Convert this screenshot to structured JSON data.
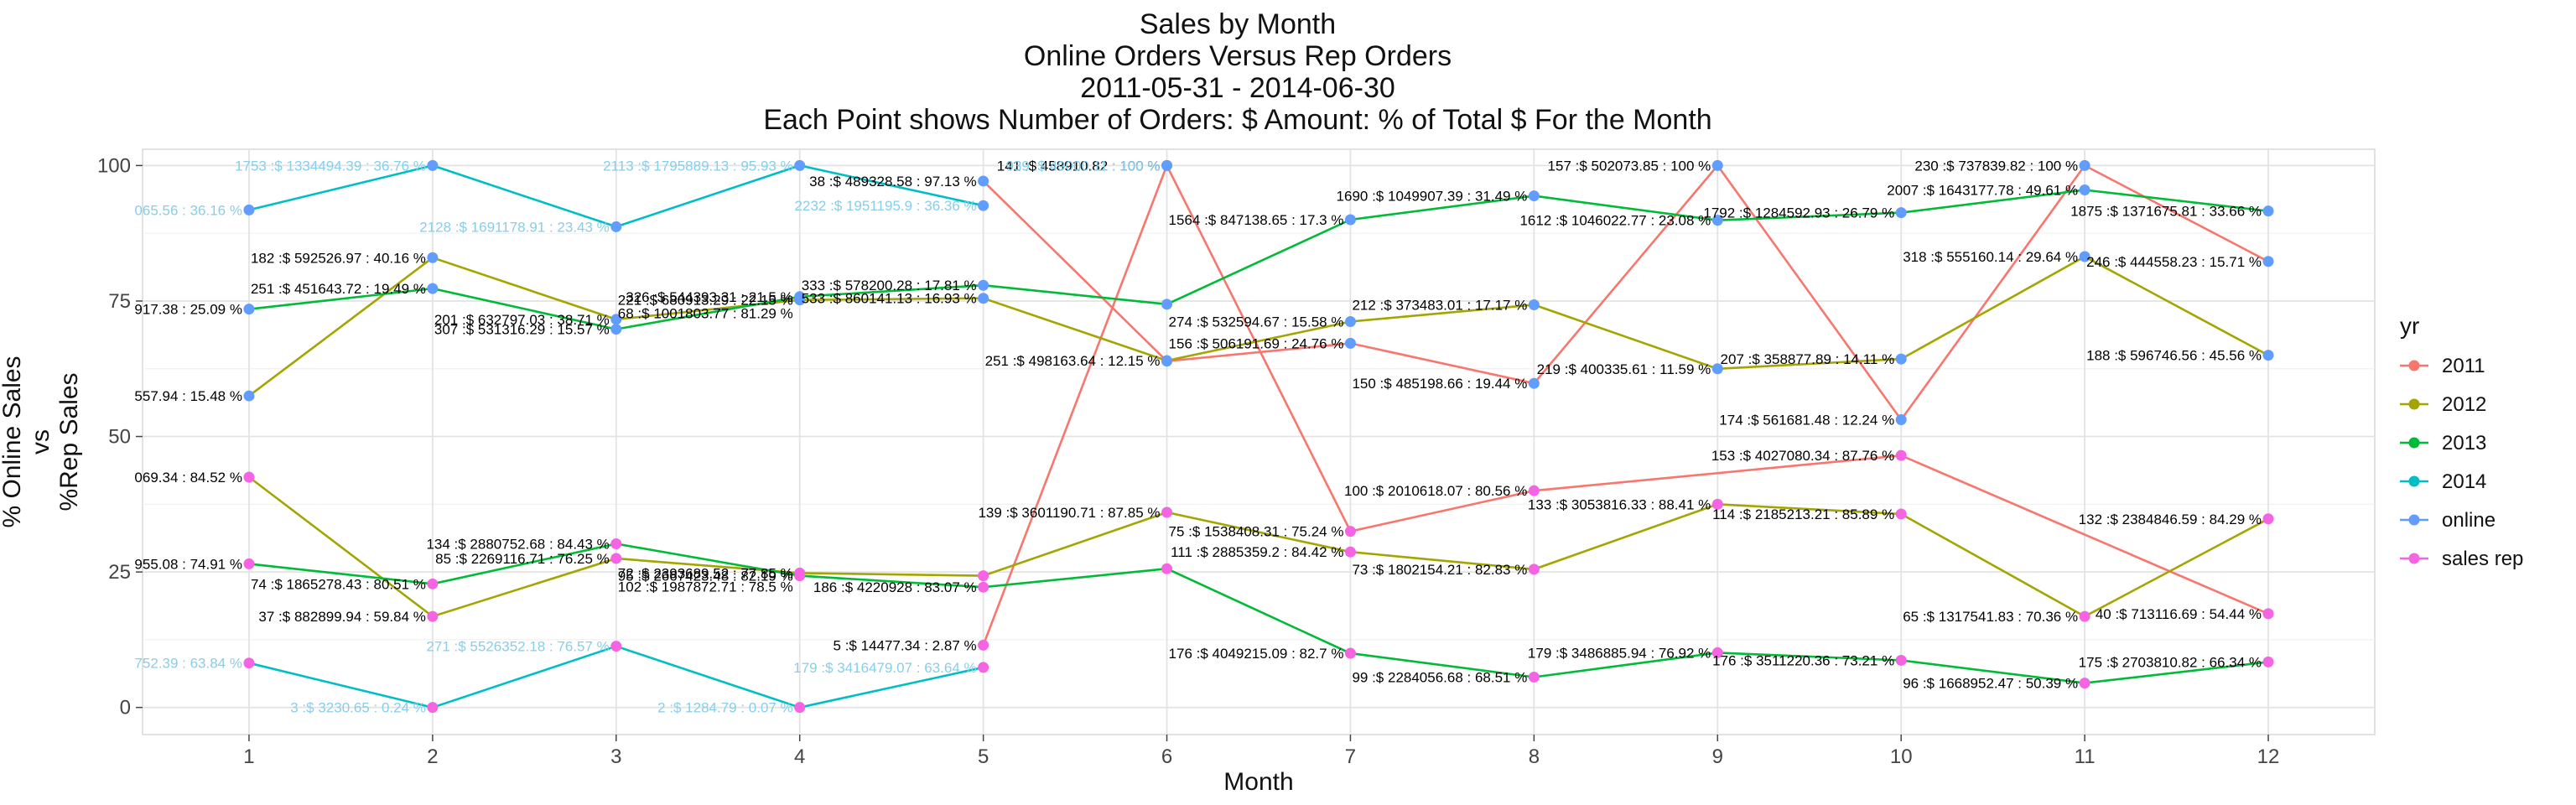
{
  "chart_data": {
    "type": "line",
    "title_lines": [
      "Sales by Month",
      "Online Orders Versus Rep Orders",
      "2011-05-31  -  2014-06-30",
      "Each Point shows Number of Orders: $ Amount: % of Total $ For the Month"
    ],
    "xlabel": "Month",
    "ylabel_lines": [
      "% Online Sales",
      "vs",
      "%Rep Sales"
    ],
    "x_ticks": [
      "1",
      "2",
      "3",
      "4",
      "5",
      "6",
      "7",
      "8",
      "9",
      "10",
      "11",
      "12"
    ],
    "y_ticks": [
      "0",
      "25",
      "50",
      "75",
      "100"
    ],
    "xlim": [
      0.42,
      12.58
    ],
    "ylim": [
      -5,
      103
    ],
    "grid": true,
    "legend_position": "right",
    "legend": {
      "title": "yr",
      "entries": [
        {
          "label": "2011",
          "color": "#F8766D"
        },
        {
          "label": "2012",
          "color": "#A3A500"
        },
        {
          "label": "2013",
          "color": "#00BA38"
        },
        {
          "label": "2014",
          "color": "#00BFC4"
        },
        {
          "label": "online",
          "color": "#619CFF"
        },
        {
          "label": "sales rep",
          "color": "#F564E3"
        }
      ]
    },
    "series": [
      {
        "name": "2011",
        "color": "#F8766D",
        "points": [
          {
            "x": 5,
            "y": 97.13,
            "type": "online",
            "label": "38 :$ 489328.58 : 97.13 %"
          },
          {
            "x": 6,
            "y": 63.9,
            "type": "online",
            "label": ""
          },
          {
            "x": 7,
            "y": 67.2,
            "type": "online",
            "label": "156 :$ 506191.69 : 24.76 %"
          },
          {
            "x": 8,
            "y": 59.8,
            "type": "online",
            "label": "150 :$ 485198.66 : 19.44 %"
          },
          {
            "x": 9,
            "y": 100,
            "type": "online",
            "label": "157 :$ 502073.85 : 100 %"
          },
          {
            "x": 10,
            "y": 53.1,
            "type": "online",
            "label": "174 :$ 561681.48 : 12.24 %"
          },
          {
            "x": 11,
            "y": 100,
            "type": "online",
            "label": "230 :$ 737839.82 : 100 %"
          },
          {
            "x": 12,
            "y": 82.3,
            "type": "online",
            "label": "246 :$ 444558.23 : 15.71 %"
          },
          {
            "x": 5,
            "y": 11.5,
            "type": "rep",
            "label": "5 :$ 14477.34 : 2.87 %"
          },
          {
            "x": 6,
            "y": 100,
            "type": "rep",
            "label": "141 :$ 458910.82 : 100 %"
          },
          {
            "x": 7,
            "y": 32.5,
            "type": "rep",
            "label": "75 :$ 1538408.31 : 75.24 %"
          },
          {
            "x": 8,
            "y": 40,
            "type": "rep",
            "label": "100 :$ 2010618.07 : 80.56 %"
          },
          {
            "x": 10,
            "y": 46.5,
            "type": "rep",
            "label": "153 :$ 4027080.34 : 87.76 %"
          },
          {
            "x": 12,
            "y": 17.3,
            "type": "rep",
            "label": "40 :$ 713116.69 : 54.44 %"
          }
        ],
        "segments": [
          [
            [
              5,
              97.13
            ],
            [
              6,
              63.9
            ],
            [
              7,
              67.2
            ],
            [
              8,
              59.8
            ],
            [
              9,
              100
            ],
            [
              10,
              53.1
            ],
            [
              11,
              100
            ],
            [
              12,
              82.3
            ]
          ],
          [
            [
              5,
              11.5
            ],
            [
              6,
              100
            ],
            [
              7,
              32.5
            ],
            [
              8,
              40
            ],
            [
              10,
              46.5
            ],
            [
              12,
              17.3
            ]
          ]
        ]
      },
      {
        "name": "2012",
        "color": "#A3A500",
        "points": [
          {
            "x": 1,
            "y": 57.5,
            "type": "online",
            "label": "557.94 : 15.48 %"
          },
          {
            "x": 2,
            "y": 83,
            "type": "online",
            "label": "182 :$ 592526.97 : 40.16 %"
          },
          {
            "x": 3,
            "y": 71.6,
            "type": "online",
            "label": "201 :$ 632797.03 : 38.71 %"
          },
          {
            "x": 4,
            "y": 75.2,
            "type": "online",
            "label": "221 :$ 680913.29 : 22.15 %"
          },
          {
            "x": 5,
            "y": 75.5,
            "type": "online",
            "label": "533 :$ 860141.13 : 16.93 %"
          },
          {
            "x": 6,
            "y": 64,
            "type": "online",
            "label": "251 :$ 498163.64 : 12.15 %"
          },
          {
            "x": 7,
            "y": 71.2,
            "type": "online",
            "label": "274 :$ 532594.67 : 15.58 %"
          },
          {
            "x": 8,
            "y": 74.3,
            "type": "online",
            "label": "212 :$ 373483.01 : 17.17 %"
          },
          {
            "x": 9,
            "y": 62.5,
            "type": "online",
            "label": "219 :$ 400335.61 : 11.59 %"
          },
          {
            "x": 10,
            "y": 64.3,
            "type": "online",
            "label": "207 :$ 358877.89 : 14.11 %"
          },
          {
            "x": 11,
            "y": 83.2,
            "type": "online",
            "label": "318 :$ 555160.14 : 29.64 %"
          },
          {
            "x": 12,
            "y": 65,
            "type": "online",
            "label": "188 :$ 596746.56 : 45.56 %"
          },
          {
            "x": 1,
            "y": 42.5,
            "type": "rep",
            "label": "069.34 : 84.52 %"
          },
          {
            "x": 2,
            "y": 16.8,
            "type": "rep",
            "label": "37 :$ 882899.94 : 59.84 %"
          },
          {
            "x": 3,
            "y": 27.5,
            "type": "rep",
            "label": "85 :$ 2269116.71 : 76.25 %"
          },
          {
            "x": 4,
            "y": 24.8,
            "type": "rep",
            "label": "72 :$ 2393689.52 : 77.85 %"
          },
          {
            "x": 5,
            "y": 24.3,
            "type": "rep",
            "label": ""
          },
          {
            "x": 6,
            "y": 36,
            "type": "rep",
            "label": "139 :$ 3601190.71 : 87.85 %"
          },
          {
            "x": 7,
            "y": 28.7,
            "type": "rep",
            "label": "111 :$ 2885359.2 : 84.42 %"
          },
          {
            "x": 8,
            "y": 25.5,
            "type": "rep",
            "label": "73 :$ 1802154.21 : 82.83 %"
          },
          {
            "x": 9,
            "y": 37.5,
            "type": "rep",
            "label": "133 :$ 3053816.33 : 88.41 %"
          },
          {
            "x": 10,
            "y": 35.7,
            "type": "rep",
            "label": "114 :$ 2185213.21 : 85.89 %"
          },
          {
            "x": 11,
            "y": 16.8,
            "type": "rep",
            "label": "65 :$ 1317541.83 : 70.36 %"
          },
          {
            "x": 12,
            "y": 34.8,
            "type": "rep",
            "label": "132 :$ 2384846.59 : 84.29 %"
          }
        ],
        "segments": [
          [
            [
              1,
              57.5
            ],
            [
              2,
              83
            ],
            [
              3,
              71.6
            ],
            [
              4,
              75.2
            ],
            [
              5,
              75.5
            ],
            [
              6,
              64
            ],
            [
              7,
              71.2
            ],
            [
              8,
              74.3
            ],
            [
              9,
              62.5
            ],
            [
              10,
              64.3
            ],
            [
              11,
              83.2
            ],
            [
              12,
              65
            ]
          ],
          [
            [
              1,
              42.5
            ],
            [
              2,
              16.8
            ],
            [
              3,
              27.5
            ],
            [
              4,
              24.8
            ],
            [
              5,
              24.3
            ],
            [
              6,
              36
            ],
            [
              7,
              28.7
            ],
            [
              8,
              25.5
            ],
            [
              9,
              37.5
            ],
            [
              10,
              35.7
            ],
            [
              11,
              16.8
            ],
            [
              12,
              34.8
            ]
          ]
        ]
      },
      {
        "name": "2013",
        "color": "#00BA38",
        "points": [
          {
            "x": 1,
            "y": 73.5,
            "type": "online",
            "label": "917.38 : 25.09 %"
          },
          {
            "x": 2,
            "y": 77.3,
            "type": "online",
            "label": "251 :$ 451643.72 : 19.49 %"
          },
          {
            "x": 3,
            "y": 69.8,
            "type": "online",
            "label": "307 :$ 531316.29 : 15.57 %"
          },
          {
            "x": 4,
            "y": 75.8,
            "type": "online",
            "label": "326 :$ 544393.31 : 21.5 %"
          },
          {
            "x": 5,
            "y": 77.9,
            "type": "online",
            "label": "333 :$ 578200.28 : 17.81 %"
          },
          {
            "x": 6,
            "y": 74.4,
            "type": "online",
            "label": ""
          },
          {
            "x": 7,
            "y": 90,
            "type": "online",
            "label": "1564 :$ 847138.65 : 17.3 %"
          },
          {
            "x": 8,
            "y": 94.4,
            "type": "online",
            "label": "1690 :$ 1049907.39 : 31.49 %"
          },
          {
            "x": 9,
            "y": 89.9,
            "type": "online",
            "label": "1612 :$ 1046022.77 : 23.08 %"
          },
          {
            "x": 10,
            "y": 91.3,
            "type": "online",
            "label": "1792 :$ 1284592.93 : 26.79 %"
          },
          {
            "x": 11,
            "y": 95.5,
            "type": "online",
            "label": "2007 :$ 1643177.78 : 49.61 %"
          },
          {
            "x": 12,
            "y": 91.6,
            "type": "online",
            "label": "1875 :$ 1371675.81 : 33.66 %"
          },
          {
            "x": 1,
            "y": 26.5,
            "type": "rep",
            "label": "955.08 : 74.91 %"
          },
          {
            "x": 2,
            "y": 22.8,
            "type": "rep",
            "label": "74 :$ 1865278.43 : 80.51 %"
          },
          {
            "x": 3,
            "y": 30.2,
            "type": "rep",
            "label": "134 :$ 2880752.68 : 84.43 %"
          },
          {
            "x": 4,
            "y": 24.3,
            "type": "rep",
            "label": "95 :$ 2667423.48 : 82.19 %"
          },
          {
            "x": 5,
            "y": 22.2,
            "type": "rep",
            "label": "186 :$ 4220928 : 83.07 %"
          },
          {
            "x": 6,
            "y": 25.6,
            "type": "rep",
            "label": ""
          },
          {
            "x": 7,
            "y": 10,
            "type": "rep",
            "label": "176 :$ 4049215.09 : 82.7 %"
          },
          {
            "x": 8,
            "y": 5.6,
            "type": "rep",
            "label": "99 :$ 2284056.68 : 68.51 %"
          },
          {
            "x": 9,
            "y": 10.1,
            "type": "rep",
            "label": "179 :$ 3486885.94 : 76.92 %"
          },
          {
            "x": 10,
            "y": 8.7,
            "type": "rep",
            "label": "176 :$ 3511220.36 : 73.21 %"
          },
          {
            "x": 11,
            "y": 4.5,
            "type": "rep",
            "label": "96 :$ 1668952.47 : 50.39 %"
          },
          {
            "x": 12,
            "y": 8.4,
            "type": "rep",
            "label": "175 :$ 2703810.82 : 66.34 %"
          }
        ],
        "segments": [
          [
            [
              1,
              73.5
            ],
            [
              2,
              77.3
            ],
            [
              3,
              69.8
            ],
            [
              4,
              75.8
            ],
            [
              5,
              77.9
            ],
            [
              6,
              74.4
            ],
            [
              7,
              90
            ],
            [
              8,
              94.4
            ],
            [
              9,
              89.9
            ],
            [
              10,
              91.3
            ],
            [
              11,
              95.5
            ],
            [
              12,
              91.6
            ]
          ],
          [
            [
              1,
              26.5
            ],
            [
              2,
              22.8
            ],
            [
              3,
              30.2
            ],
            [
              4,
              24.3
            ],
            [
              5,
              22.2
            ],
            [
              6,
              25.6
            ],
            [
              7,
              10
            ],
            [
              8,
              5.6
            ],
            [
              9,
              10.1
            ],
            [
              10,
              8.7
            ],
            [
              11,
              4.5
            ],
            [
              12,
              8.4
            ]
          ]
        ]
      },
      {
        "name": "2014",
        "color": "#00BFC4",
        "points": [
          {
            "x": 1,
            "y": 91.8,
            "type": "online",
            "label": "065.56 : 36.16 %"
          },
          {
            "x": 2,
            "y": 100,
            "type": "online",
            "label": "1753 :$ 1334494.39 : 36.76 %"
          },
          {
            "x": 3,
            "y": 88.7,
            "type": "online",
            "label": "2128 :$ 1691178.91 : 23.43 %"
          },
          {
            "x": 4,
            "y": 100,
            "type": "online",
            "label": "2113 :$ 1795889.13 : 95.93 %"
          },
          {
            "x": 5,
            "y": 92.6,
            "type": "online",
            "label": "2232 :$ 1951195.9 : 36.36 %"
          },
          {
            "x": 6,
            "y": 100,
            "type": "online",
            "label": "939 :$ 49000.11 : 100 %"
          },
          {
            "x": 1,
            "y": 8.2,
            "type": "rep",
            "label": "752.39 : 63.84 %"
          },
          {
            "x": 2,
            "y": 0,
            "type": "rep",
            "label": "3 :$ 3230.65 : 0.24 %"
          },
          {
            "x": 3,
            "y": 11.3,
            "type": "rep",
            "label": "271 :$ 5526352.18 : 76.57 %"
          },
          {
            "x": 4,
            "y": 0,
            "type": "rep",
            "label": "2 :$ 1284.79 : 0.07 %"
          },
          {
            "x": 5,
            "y": 7.4,
            "type": "rep",
            "label": "179 :$ 3416479.07 : 63.64 %"
          }
        ],
        "segments": [
          [
            [
              1,
              91.8
            ],
            [
              2,
              100
            ],
            [
              3,
              88.7
            ],
            [
              4,
              100
            ],
            [
              5,
              92.6
            ]
          ],
          [
            [
              1,
              8.2
            ],
            [
              2,
              0
            ],
            [
              3,
              11.3
            ],
            [
              4,
              0
            ],
            [
              5,
              7.4
            ]
          ]
        ]
      }
    ],
    "extra_labels": [
      {
        "x": 4,
        "y": 75.2,
        "text": "68 :$ 1001803.77 : 81.29 %",
        "color": "#000000"
      },
      {
        "x": 4,
        "y": 24.8,
        "text": "102 :$ 1987872.71 : 78.5 %",
        "color": "#000000"
      }
    ],
    "point_colors": {
      "online": "#619CFF",
      "rep": "#F564E3"
    }
  }
}
